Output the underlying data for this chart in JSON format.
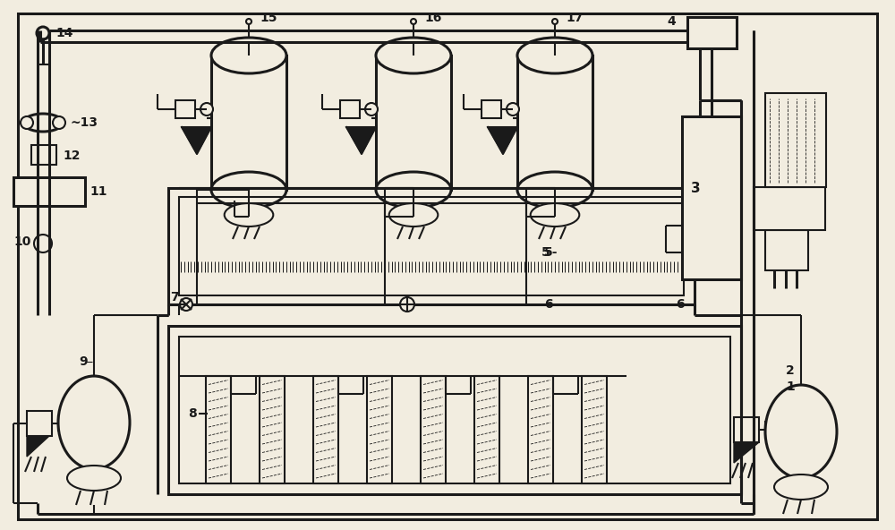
{
  "bg_color": "#f2ede0",
  "lc": "#1a1a1a",
  "lw": 1.5,
  "lw2": 2.2,
  "lw3": 2.8
}
